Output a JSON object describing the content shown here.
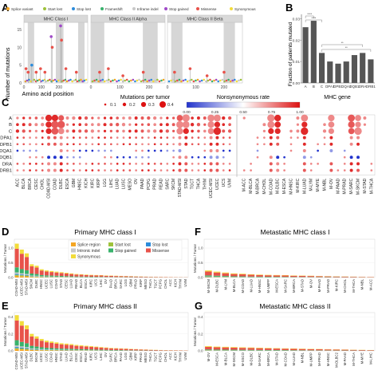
{
  "chart_data": [
    {
      "panel": "A",
      "type": "scatter",
      "ylabel": "Number of mutations",
      "xlabel": "Amino acid position",
      "facets": [
        "MHC Class I",
        "MHC Class II Alpha",
        "MHC Class II Beta"
      ],
      "x_ticks": [
        "0",
        "100",
        "200",
        "0",
        "100",
        "200",
        "0",
        "100",
        "200"
      ],
      "y_ticks": [
        "0",
        "5",
        "10",
        "15"
      ],
      "legend": [
        "Splice variant",
        "Start lost",
        "Stop lost",
        "Frameshift",
        "Inframe indel",
        "Stop gained",
        "Missense",
        "Synonymous"
      ],
      "legend_colors": [
        "#f5a623",
        "#9ec23b",
        "#2d8cdb",
        "#38b26b",
        "#c8c8c8",
        "#a04ac8",
        "#e8524a",
        "#f2dc3a"
      ],
      "ylim": [
        0,
        17
      ],
      "facet_xlim": [
        [
          0,
          365
        ],
        [
          0,
          255
        ],
        [
          0,
          265
        ]
      ],
      "lollipops": [
        {
          "facet": 0,
          "x": 12,
          "y": 4,
          "type": "Missense"
        },
        {
          "facet": 0,
          "x": 24,
          "y": 3,
          "type": "Missense"
        },
        {
          "facet": 0,
          "x": 45,
          "y": 5,
          "type": "Stop lost"
        },
        {
          "facet": 0,
          "x": 70,
          "y": 3,
          "type": "Missense"
        },
        {
          "facet": 0,
          "x": 95,
          "y": 4,
          "type": "Missense"
        },
        {
          "facet": 0,
          "x": 120,
          "y": 3,
          "type": "Missense"
        },
        {
          "facet": 0,
          "x": 156,
          "y": 13,
          "type": "Stop gained"
        },
        {
          "facet": 0,
          "x": 162,
          "y": 10,
          "type": "Missense"
        },
        {
          "facet": 0,
          "x": 210,
          "y": 16,
          "type": "Stop gained"
        },
        {
          "facet": 0,
          "x": 215,
          "y": 12,
          "type": "Missense"
        },
        {
          "facet": 0,
          "x": 240,
          "y": 4,
          "type": "Missense"
        },
        {
          "facet": 0,
          "x": 300,
          "y": 3,
          "type": "Missense"
        },
        {
          "facet": 1,
          "x": 30,
          "y": 3,
          "type": "Missense"
        },
        {
          "facet": 1,
          "x": 60,
          "y": 4,
          "type": "Missense"
        },
        {
          "facet": 1,
          "x": 110,
          "y": 2,
          "type": "Missense"
        },
        {
          "facet": 1,
          "x": 180,
          "y": 3,
          "type": "Missense"
        },
        {
          "facet": 2,
          "x": 25,
          "y": 3,
          "type": "Missense"
        },
        {
          "facet": 2,
          "x": 80,
          "y": 4,
          "type": "Missense"
        },
        {
          "facet": 2,
          "x": 140,
          "y": 2,
          "type": "Missense"
        },
        {
          "facet": 2,
          "x": 200,
          "y": 3,
          "type": "Missense"
        }
      ]
    },
    {
      "panel": "B",
      "type": "bar",
      "categories": [
        "A",
        "B",
        "C",
        "DPA1",
        "DPB1",
        "DQA1",
        "DQB1",
        "DRA",
        "DRB1"
      ],
      "values": [
        0.026,
        0.029,
        0.014,
        0.01,
        0.009,
        0.01,
        0.013,
        0.014,
        0.011
      ],
      "ylabel": "Fraction of patients mutated",
      "xlabel": "MHC gene",
      "ylim": [
        0,
        0.032
      ],
      "y_ticks": [
        "0.00",
        "0.01",
        "0.02",
        "0.03"
      ],
      "significance": [
        "****",
        "****",
        "**",
        "**"
      ],
      "bar_color": "#555555"
    },
    {
      "panel": "C",
      "type": "scatter",
      "rows": [
        "A",
        "B",
        "C",
        "DPA1",
        "DPB1",
        "DQA1",
        "DQB1",
        "DRA",
        "DRB1"
      ],
      "row_labels": [
        "A",
        "B",
        "C",
        "DPA1",
        "DPB1",
        "DQA1",
        "DQB1",
        "DRA",
        "DRB1"
      ],
      "primary_columns": [
        "ACC",
        "BLCA",
        "BRCA",
        "CESC",
        "CHOL",
        "COAD-MSI",
        "COAD",
        "DLBC",
        "ESCA",
        "GBM",
        "HNSC",
        "KICH",
        "KIRC",
        "KIRP",
        "LGG",
        "LIHC",
        "LUAD",
        "LUSC",
        "MESO",
        "OV",
        "PAAD",
        "PCPG",
        "PRAD",
        "READ",
        "SARC",
        "SKCM",
        "STAD-MSI",
        "STAD",
        "TGCT",
        "THCA",
        "THYM",
        "UCEC-MSI",
        "UCEC",
        "UCS",
        "UVM"
      ],
      "metastatic_columns": [
        "M-ACC",
        "M-BLCA",
        "M-BRCA",
        "M-CHOL",
        "M-COAD",
        "M-DLBC",
        "M-ESCA",
        "M-HNSC",
        "M-KIRC",
        "M-LUAD",
        "M-LYM",
        "M-MYE",
        "M-NBL",
        "M-OV",
        "M-PAAD",
        "M-PRAD",
        "M-SARC",
        "M-SKCM",
        "M-STAD",
        "M-THCA"
      ],
      "size_legend_title": "Mutations per tumor",
      "size_legend_ticks": [
        "0.1",
        "0.2",
        "0.3",
        "0.4"
      ],
      "color_legend_title": "Nonsynonymous rate",
      "color_legend_ticks": [
        "0.00",
        "0.25",
        "0.50",
        "0.75",
        "1.00"
      ],
      "color_scale": [
        "#2233cc",
        "#ffffff",
        "#dd1111"
      ],
      "primary_hot_columns": [
        5,
        6,
        7,
        26,
        27,
        31,
        32
      ],
      "metastatic_hot_columns": [
        4,
        5,
        9,
        13,
        16,
        17
      ]
    },
    {
      "panel": "D",
      "type": "bar",
      "title": "Primary MHC class I",
      "ylabel": "Mutations / Tumor",
      "y_ticks": [
        "0.0",
        "0.5",
        "1.0"
      ],
      "ylim": [
        0,
        1.3
      ],
      "categories": [
        "COAD-MSI",
        "UCEC-MSI",
        "STAD-MSI",
        "SKCM",
        "DLBC",
        "HNSC",
        "UCEC",
        "LUSC",
        "COAD",
        "STAD",
        "CESC",
        "LUAD",
        "READ",
        "BLCA",
        "ESCA",
        "KIRC",
        "UCS",
        "LIHC",
        "OV",
        "PAAD",
        "BRCA",
        "SARC",
        "LGG",
        "GBM",
        "PRAD",
        "KIRP",
        "MESO",
        "THCA",
        "TGCT",
        "PCPG",
        "CHOL",
        "ACC",
        "KICH",
        "THYM",
        "UVM"
      ],
      "values": [
        1.15,
        0.95,
        0.82,
        0.45,
        0.4,
        0.28,
        0.24,
        0.22,
        0.2,
        0.18,
        0.16,
        0.14,
        0.12,
        0.11,
        0.1,
        0.09,
        0.085,
        0.08,
        0.07,
        0.065,
        0.06,
        0.055,
        0.05,
        0.045,
        0.04,
        0.035,
        0.03,
        0.027,
        0.024,
        0.021,
        0.018,
        0.015,
        0.012,
        0.01,
        0.008
      ],
      "legend": [
        "Splice region",
        "Start lost",
        "Stop lost",
        "Intronic indel",
        "Stop gained",
        "Missense",
        "Synonymous"
      ],
      "legend_colors": [
        "#f5a623",
        "#9ec23b",
        "#2d8cdb",
        "#c8c8c8",
        "#38b26b",
        "#e8524a",
        "#f2dc3a"
      ],
      "stack_fractions": [
        0.05,
        0.03,
        0.03,
        0.04,
        0.15,
        0.55,
        0.15
      ]
    },
    {
      "panel": "E",
      "type": "bar",
      "title": "Primary MHC class II",
      "ylabel": "Mutations / Tumor",
      "y_ticks": [
        "0.0",
        "0.2",
        "0.4"
      ],
      "ylim": [
        0,
        0.45
      ],
      "categories": [
        "COAD-MSI",
        "UCEC-MSI",
        "STAD-MSI",
        "DLBC",
        "SKCM",
        "UCEC",
        "LUSC",
        "COAD",
        "HNSC",
        "STAD",
        "LUAD",
        "BLCA",
        "CESC",
        "ESCA",
        "READ",
        "KIRC",
        "UCS",
        "LIHC",
        "OV",
        "SARC",
        "BRCA",
        "PAAD",
        "LGG",
        "GBM",
        "KIRP",
        "PRAD",
        "MESO",
        "THCA",
        "TGCT",
        "PCPG",
        "CHOL",
        "ACC",
        "KICH",
        "THYM",
        "UVM"
      ],
      "values": [
        0.42,
        0.35,
        0.3,
        0.2,
        0.17,
        0.14,
        0.12,
        0.11,
        0.1,
        0.09,
        0.085,
        0.08,
        0.07,
        0.065,
        0.06,
        0.055,
        0.05,
        0.045,
        0.04,
        0.035,
        0.032,
        0.03,
        0.027,
        0.024,
        0.021,
        0.018,
        0.016,
        0.014,
        0.012,
        0.01,
        0.009,
        0.008,
        0.007,
        0.006,
        0.005
      ],
      "stack_fractions": [
        0.05,
        0.03,
        0.03,
        0.04,
        0.15,
        0.55,
        0.15
      ]
    },
    {
      "panel": "F",
      "type": "bar",
      "title": "Metastatic MHC class I",
      "ylabel": "Mutations / Tumor",
      "y_ticks": [
        "0.0",
        "0.5",
        "1.0"
      ],
      "ylim": [
        0,
        1.3
      ],
      "categories": [
        "M-SKCM",
        "M-DLBC",
        "M-LYM",
        "M-BLCA",
        "M-COAD",
        "M-LUAD",
        "M-HNSC",
        "M-UMPP",
        "M-ESCA",
        "M-SARC",
        "M-BRCA",
        "M-STAD",
        "M-OV",
        "M-PAAD",
        "M-PRAD",
        "M-KIRC",
        "M-CHOL",
        "M-THCA",
        "M-NBL",
        "M-ACC"
      ],
      "values": [
        0.24,
        0.2,
        0.17,
        0.14,
        0.13,
        0.11,
        0.1,
        0.09,
        0.085,
        0.08,
        0.07,
        0.065,
        0.06,
        0.05,
        0.045,
        0.04,
        0.035,
        0.03,
        0.025,
        0.02
      ],
      "stack_fractions": [
        0.05,
        0.03,
        0.03,
        0.04,
        0.15,
        0.55,
        0.15
      ]
    },
    {
      "panel": "G",
      "type": "bar",
      "title": "Metastatic MHC class II",
      "ylabel": "Mutations / Tumor",
      "y_ticks": [
        "0.0",
        "0.2",
        "0.4"
      ],
      "ylim": [
        0,
        0.45
      ],
      "categories": [
        "M-OV",
        "M-ESCA",
        "M-BLCA",
        "M-SKCM",
        "M-SSCO",
        "M-DLBC",
        "M-SARC",
        "M-BRCA",
        "M-STAD",
        "M-COAD",
        "M-LUAD",
        "M-NBL",
        "M-UMPP",
        "M-PRAD",
        "M-HNSC",
        "M-DLBC2",
        "M-PAAD",
        "M-THCA",
        "M-MYE",
        "M-LIHC"
      ],
      "values": [
        0.055,
        0.05,
        0.048,
        0.045,
        0.042,
        0.04,
        0.037,
        0.035,
        0.032,
        0.03,
        0.028,
        0.026,
        0.024,
        0.022,
        0.02,
        0.018,
        0.016,
        0.014,
        0.012,
        0.01
      ],
      "stack_fractions": [
        0.05,
        0.03,
        0.03,
        0.04,
        0.15,
        0.55,
        0.15
      ]
    }
  ]
}
